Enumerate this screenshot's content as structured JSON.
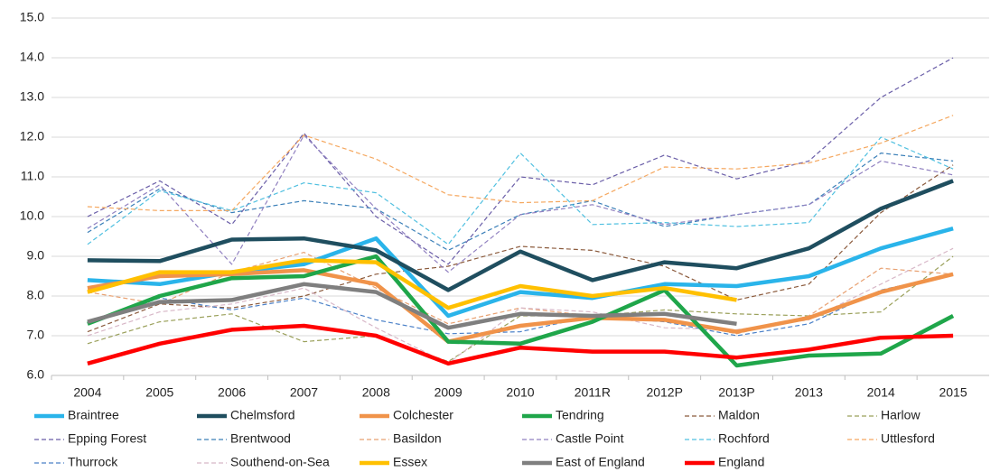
{
  "chart_data": {
    "type": "line",
    "categories": [
      "2004",
      "2005",
      "2006",
      "2007",
      "2008",
      "2009",
      "2010",
      "2011R",
      "2012P",
      "2013P",
      "2013",
      "2014",
      "2015"
    ],
    "ylim": [
      6,
      15
    ],
    "yticks": [
      {
        "value": 6,
        "label": "6.0"
      },
      {
        "value": 7,
        "label": "7.0"
      },
      {
        "value": 8,
        "label": "8.0"
      },
      {
        "value": 9,
        "label": "9.0"
      },
      {
        "value": 10,
        "label": "10.0"
      },
      {
        "value": 11,
        "label": "11.0"
      },
      {
        "value": 12,
        "label": "12.0"
      },
      {
        "value": 13,
        "label": "13.0"
      },
      {
        "value": 14,
        "label": "14.0"
      },
      {
        "value": 15,
        "label": "15.0"
      }
    ],
    "grid": true,
    "legend": "bottom",
    "series": [
      {
        "name": "Braintree",
        "color": "#2ab4ea",
        "style": "solid",
        "values": [
          8.4,
          8.3,
          8.6,
          8.8,
          9.45,
          7.5,
          8.1,
          7.95,
          8.3,
          8.25,
          8.5,
          9.2,
          9.7
        ]
      },
      {
        "name": "Chelmsford",
        "color": "#1f4e5f",
        "style": "solid",
        "values": [
          8.9,
          8.88,
          9.42,
          9.45,
          9.15,
          8.15,
          9.12,
          8.4,
          8.85,
          8.7,
          9.2,
          10.2,
          10.9
        ]
      },
      {
        "name": "Colchester",
        "color": "#f0934a",
        "style": "solid",
        "values": [
          8.2,
          8.5,
          8.55,
          8.65,
          8.3,
          6.85,
          7.25,
          7.45,
          7.4,
          7.1,
          7.45,
          8.1,
          8.55
        ]
      },
      {
        "name": "Tendring",
        "color": "#1fa64a",
        "style": "solid",
        "values": [
          7.3,
          8.0,
          8.45,
          8.5,
          9.0,
          6.85,
          6.8,
          7.35,
          8.15,
          6.25,
          6.5,
          6.55,
          7.5
        ]
      },
      {
        "name": "Maldon",
        "color": "#8b5a3c",
        "style": "dashed",
        "values": [
          7.1,
          7.8,
          7.7,
          8.0,
          8.55,
          8.75,
          9.25,
          9.15,
          8.75,
          7.9,
          8.3,
          10.1,
          11.3
        ]
      },
      {
        "name": "Harlow",
        "color": "#9aa05a",
        "style": "dashed",
        "values": [
          6.8,
          7.35,
          7.55,
          6.85,
          7.0,
          6.35,
          7.5,
          7.5,
          7.65,
          7.55,
          7.5,
          7.6,
          9.0
        ]
      },
      {
        "name": "Epping Forest",
        "color": "#6a5ea8",
        "style": "dashed",
        "values": [
          10.0,
          10.9,
          9.8,
          12.1,
          10.0,
          8.8,
          11.0,
          10.8,
          11.55,
          10.95,
          11.4,
          13.0,
          14.0
        ]
      },
      {
        "name": "Brentwood",
        "color": "#3a7fb8",
        "style": "dashed",
        "values": [
          9.6,
          10.7,
          10.1,
          10.4,
          10.2,
          9.15,
          10.05,
          10.4,
          9.75,
          10.05,
          10.3,
          11.6,
          11.4
        ]
      },
      {
        "name": "Basildon",
        "color": "#e8a070",
        "style": "dashed",
        "values": [
          8.1,
          7.8,
          8.6,
          9.1,
          8.2,
          7.3,
          7.7,
          7.5,
          7.4,
          7.05,
          7.5,
          8.7,
          8.55
        ]
      },
      {
        "name": "Castle Point",
        "color": "#9080c0",
        "style": "dashed",
        "values": [
          9.7,
          10.8,
          8.8,
          12.05,
          10.2,
          8.6,
          10.05,
          10.3,
          9.8,
          10.05,
          10.3,
          11.4,
          11.05
        ]
      },
      {
        "name": "Rochford",
        "color": "#50c0e0",
        "style": "dashed",
        "values": [
          9.3,
          10.65,
          10.15,
          10.85,
          10.6,
          9.3,
          11.6,
          9.8,
          9.85,
          9.75,
          9.85,
          12.0,
          11.2
        ]
      },
      {
        "name": "Uttlesford",
        "color": "#f5a860",
        "style": "dashed",
        "values": [
          10.25,
          10.15,
          10.15,
          12.05,
          11.45,
          10.55,
          10.35,
          10.4,
          11.25,
          11.2,
          11.35,
          11.85,
          12.55
        ]
      },
      {
        "name": "Thurrock",
        "color": "#4a80c8",
        "style": "dashed",
        "values": [
          7.3,
          7.95,
          7.65,
          7.95,
          7.4,
          7.05,
          7.1,
          7.5,
          7.35,
          7.0,
          7.3,
          8.15,
          8.55
        ]
      },
      {
        "name": "Southend-on-Sea",
        "color": "#d8b8c8",
        "style": "dashed",
        "values": [
          7.0,
          7.6,
          7.8,
          8.2,
          7.2,
          6.3,
          7.7,
          7.6,
          7.2,
          7.15,
          7.4,
          8.3,
          9.2
        ]
      },
      {
        "name": "Essex",
        "color": "#ffc000",
        "style": "solid",
        "values": [
          8.1,
          8.6,
          8.6,
          8.9,
          8.85,
          7.7,
          8.25,
          8.0,
          8.2,
          7.9,
          null,
          null,
          null
        ]
      },
      {
        "name": "East of England",
        "color": "#7f7f7f",
        "style": "solid",
        "values": [
          7.35,
          7.85,
          7.9,
          8.3,
          8.1,
          7.2,
          7.55,
          7.5,
          7.55,
          7.3,
          null,
          null,
          null
        ]
      },
      {
        "name": "England",
        "color": "#ff0000",
        "style": "solid",
        "values": [
          6.3,
          6.8,
          7.15,
          7.25,
          7.0,
          6.3,
          6.7,
          6.6,
          6.6,
          6.45,
          6.65,
          6.95,
          7.0
        ]
      }
    ]
  }
}
